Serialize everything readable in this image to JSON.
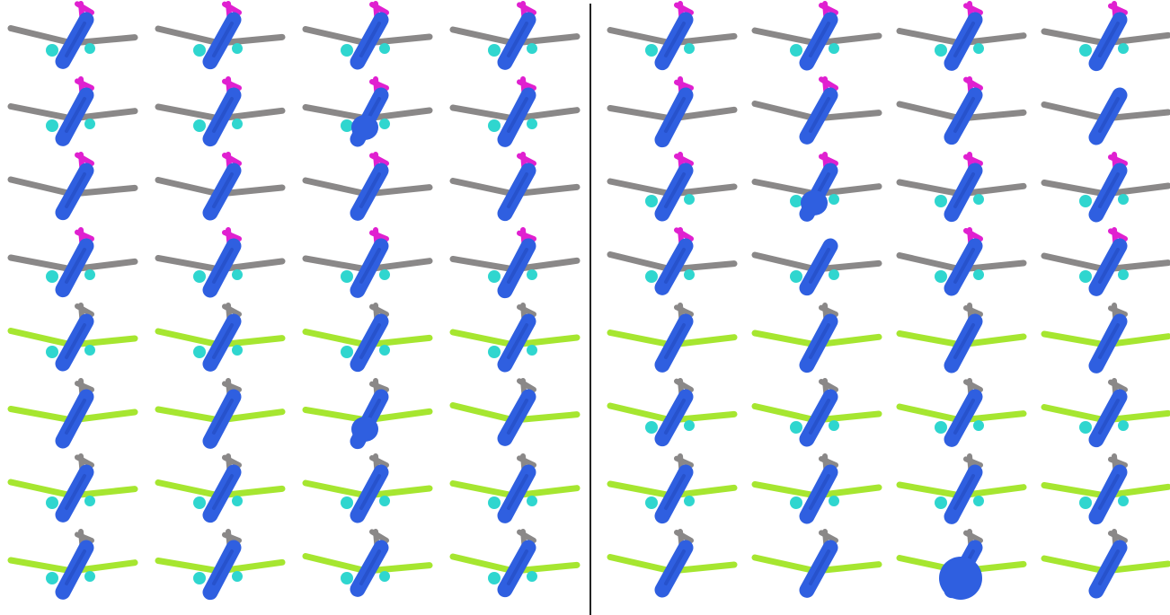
{
  "figure": {
    "colors": {
      "fuselage": "#2f5fe0",
      "fuselage_shadow": "#1f45b8",
      "wing_gray": "#8a8888",
      "wing_green": "#a6e630",
      "tail_magenta": "#e020d0",
      "tail_gray": "#8a8888",
      "engine": "#2fd6cf",
      "divider": "#222222",
      "background": "#ffffff"
    },
    "panels": [
      {
        "name": "left",
        "rows": [
          [
            "gray-magenta",
            "gray-magenta",
            "gray-magenta",
            "gray-magenta"
          ],
          [
            "gray-magenta",
            "gray-magenta",
            "gray-magenta-blob",
            "gray-magenta"
          ],
          [
            "gray-magenta",
            "gray-magenta",
            "gray-magenta",
            "gray-magenta"
          ],
          [
            "gray-magenta",
            "gray-magenta",
            "gray-magenta",
            "gray-magenta"
          ],
          [
            "green-gray",
            "green-gray",
            "green-gray",
            "green-gray"
          ],
          [
            "green-gray",
            "green-gray",
            "green-gray-blob",
            "green-gray"
          ],
          [
            "green-gray",
            "green-gray",
            "green-gray",
            "green-gray"
          ],
          [
            "green-gray",
            "green-gray",
            "green-gray",
            "green-gray"
          ]
        ]
      },
      {
        "name": "right",
        "rows": [
          [
            "gray-magenta",
            "gray-magenta",
            "gray-magenta",
            "gray-magenta"
          ],
          [
            "gray-magenta",
            "gray-magenta",
            "gray-magenta",
            "gray-plain"
          ],
          [
            "gray-magenta",
            "gray-magenta-blob",
            "gray-magenta",
            "gray-magenta"
          ],
          [
            "gray-magenta",
            "gray-plain",
            "gray-magenta",
            "gray-magenta"
          ],
          [
            "green-gray",
            "green-gray",
            "green-gray",
            "green-gray"
          ],
          [
            "green-gray",
            "green-gray",
            "green-gray",
            "green-gray"
          ],
          [
            "green-gray",
            "green-gray",
            "green-gray",
            "green-gray"
          ],
          [
            "green-gray",
            "green-gray",
            "green-gray-big-blob",
            "green-gray"
          ]
        ]
      }
    ]
  }
}
